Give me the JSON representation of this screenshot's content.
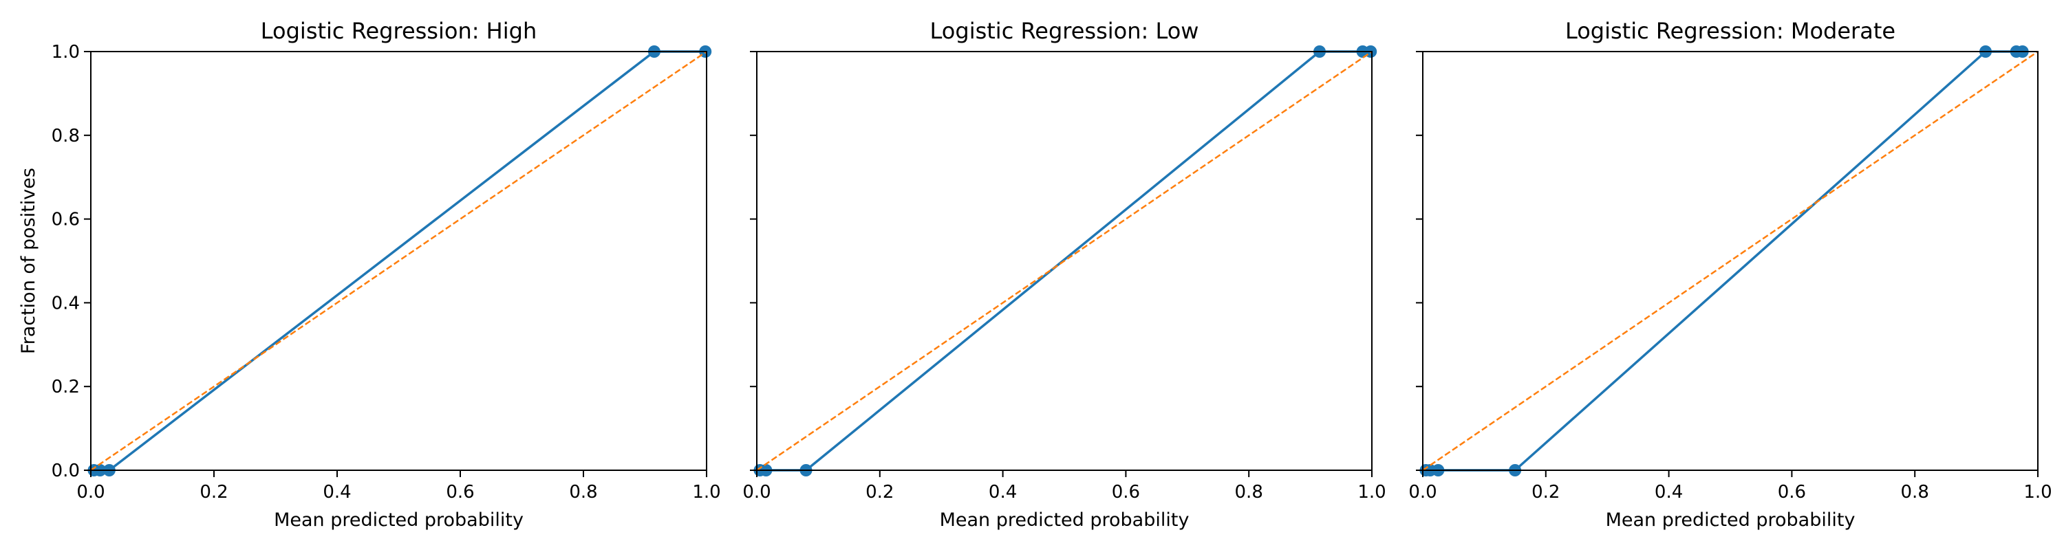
{
  "figure": {
    "shared_ylabel": "Fraction of positives",
    "colors": {
      "calibration_curve": "#1f77b4",
      "reference_line": "#ff7f0e",
      "axes": "#000000",
      "background": "#ffffff"
    }
  },
  "chart_data": [
    {
      "type": "line",
      "title": "Logistic Regression: High",
      "xlabel": "Mean predicted probability",
      "ylabel": "Fraction of positives",
      "xlim": [
        0.0,
        1.0
      ],
      "ylim": [
        0.0,
        1.0
      ],
      "xticks": [
        "0.0",
        "0.2",
        "0.4",
        "0.6",
        "0.8",
        "1.0"
      ],
      "yticks": [
        "0.0",
        "0.2",
        "0.4",
        "0.6",
        "0.8",
        "1.0"
      ],
      "grid": false,
      "legend": "none",
      "series": [
        {
          "x": [
            0.005,
            0.015,
            0.03,
            0.915,
            0.998
          ],
          "y": [
            0.0,
            0.0,
            0.0,
            1.0,
            1.0
          ],
          "style": "solid-markers",
          "color": "#1f77b4"
        },
        {
          "x": [
            0.0,
            1.0
          ],
          "y": [
            0.0,
            1.0
          ],
          "style": "dashed",
          "color": "#ff7f0e"
        }
      ]
    },
    {
      "type": "line",
      "title": "Logistic Regression: Low",
      "xlabel": "Mean predicted probability",
      "ylabel": "",
      "xlim": [
        0.0,
        1.0
      ],
      "ylim": [
        0.0,
        1.0
      ],
      "xticks": [
        "0.0",
        "0.2",
        "0.4",
        "0.6",
        "0.8",
        "1.0"
      ],
      "yticks": [],
      "grid": false,
      "legend": "none",
      "series": [
        {
          "x": [
            0.005,
            0.015,
            0.08,
            0.915,
            0.985,
            0.998
          ],
          "y": [
            0.0,
            0.0,
            0.0,
            1.0,
            1.0,
            1.0
          ],
          "style": "solid-markers",
          "color": "#1f77b4"
        },
        {
          "x": [
            0.0,
            1.0
          ],
          "y": [
            0.0,
            1.0
          ],
          "style": "dashed",
          "color": "#ff7f0e"
        }
      ]
    },
    {
      "type": "line",
      "title": "Logistic Regression: Moderate",
      "xlabel": "Mean predicted probability",
      "ylabel": "",
      "xlim": [
        0.0,
        1.0
      ],
      "ylim": [
        0.0,
        1.0
      ],
      "xticks": [
        "0.0",
        "0.2",
        "0.4",
        "0.6",
        "0.8",
        "1.0"
      ],
      "yticks": [],
      "grid": false,
      "legend": "none",
      "series": [
        {
          "x": [
            0.005,
            0.012,
            0.025,
            0.15,
            0.915,
            0.965,
            0.975
          ],
          "y": [
            0.0,
            0.0,
            0.0,
            0.0,
            1.0,
            1.0,
            1.0
          ],
          "style": "solid-markers",
          "color": "#1f77b4"
        },
        {
          "x": [
            0.0,
            1.0
          ],
          "y": [
            0.0,
            1.0
          ],
          "style": "dashed",
          "color": "#ff7f0e"
        }
      ]
    }
  ]
}
